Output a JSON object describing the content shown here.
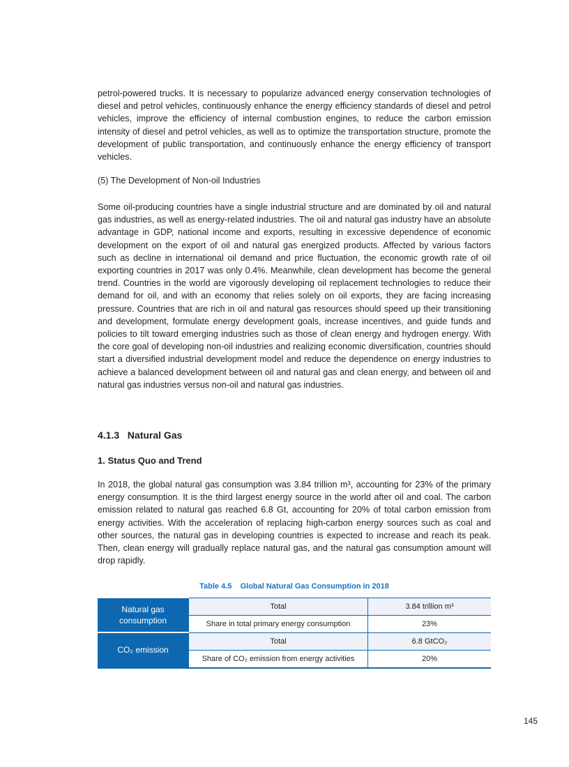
{
  "paragraphs": [
    "petrol-powered trucks. It is necessary to popularize advanced energy conservation technologies of diesel and petrol vehicles, continuously enhance the energy efficiency standards of diesel and petrol vehicles, improve the efficiency of internal combustion engines, to reduce the carbon emission intensity of diesel and petrol vehicles, as well as to optimize the transportation structure, promote the development of public transportation, and continuously enhance the energy efficiency of transport vehicles.",
    "Some oil-producing countries have a single industrial structure and are dominated by oil and natural gas industries, as well as energy-related industries. The oil and natural gas industry have an absolute advantage in GDP, national income and exports, resulting in excessive dependence of economic development on the export of oil and natural gas energized products. Affected by various factors such as decline in international oil demand and price fluctuation, the economic growth rate of oil exporting countries in 2017 was only 0.4%. Meanwhile, clean development has become the general trend. Countries in the world are vigorously developing oil replacement technologies to reduce their demand for oil, and with an economy that relies solely on oil exports, they are facing increasing pressure. Countries that are rich in oil and natural gas resources should speed up their transitioning and development, formulate energy development goals, increase incentives, and guide funds and policies to tilt toward emerging industries such as those of clean energy and hydrogen energy. With the core goal of developing non-oil industries and realizing economic diversification, countries should start a diversified industrial development model and reduce the dependence on energy industries to achieve a balanced development between oil and natural gas and clean energy, and between oil and natural gas industries versus non-oil and natural gas industries.",
    "In 2018, the global natural gas consumption was 3.84 trillion m³, accounting for 23% of the primary energy consumption. It is the third largest energy source in the world after oil and coal. The carbon emission related to natural gas reached 6.8 Gt, accounting for 20% of total carbon emission from energy activities. With the acceleration of replacing high-carbon energy sources such as coal and other sources, the natural gas in developing countries is expected to increase and reach its peak. Then, clean energy will gradually replace natural gas, and the natural gas consumption amount will drop rapidly."
  ],
  "headings": {
    "non_oil": "(5) The Development of Non-oil Industries",
    "section": "4.1.3   Natural Gas",
    "status": "1. Status Quo and Trend"
  },
  "table": {
    "caption": "Table 4.5    Global Natural Gas Consumption in 2018",
    "groups": [
      {
        "label": "Natural gas consumption",
        "rows": [
          {
            "item": "Total",
            "value": "3.84 trillion m³"
          },
          {
            "item": "Share in total primary energy consumption",
            "value": "23%"
          }
        ]
      },
      {
        "label": "CO₂ emission",
        "rows": [
          {
            "item": "Total",
            "value": "6.8 GtCO₂"
          },
          {
            "item": "Share of CO₂ emission from energy activities",
            "value": "20%"
          }
        ]
      }
    ],
    "colors": {
      "header": "#0d68b1",
      "shaded_row": "#eef1f7"
    }
  },
  "page_number": "145"
}
